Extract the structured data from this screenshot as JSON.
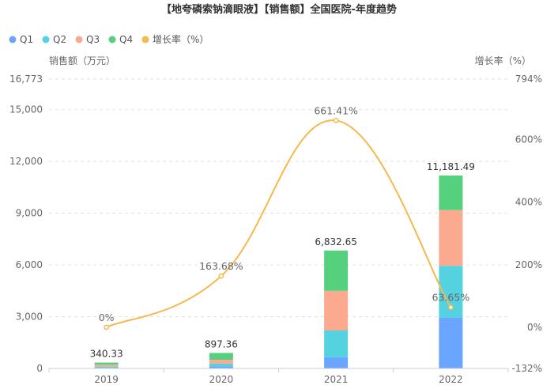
{
  "chart_data": {
    "type": "bar",
    "stacked": true,
    "title": "【地夸磷索钠滴眼液】【销售额】全国医院-年度趋势",
    "categories": [
      "2019",
      "2020",
      "2021",
      "2022"
    ],
    "series": [
      {
        "name": "Q1",
        "values": [
          40,
          120,
          650,
          2950
        ],
        "color": "#6aa5ff"
      },
      {
        "name": "Q2",
        "values": [
          70,
          160,
          1550,
          3000
        ],
        "color": "#55d2e0"
      },
      {
        "name": "Q3",
        "values": [
          110,
          220,
          2300,
          3230
        ],
        "color": "#fba98f"
      },
      {
        "name": "Q4",
        "values": [
          120.33,
          397.36,
          2332.65,
          2001.49
        ],
        "color": "#55d17e"
      }
    ],
    "totals": [
      340.33,
      897.36,
      6832.65,
      11181.49
    ],
    "total_labels": [
      "340.33",
      "897.36",
      "6,832.65",
      "11,181.49"
    ],
    "growth": {
      "name": "增长率（%）",
      "values": [
        0,
        163.68,
        661.41,
        63.65
      ],
      "labels": [
        "0%",
        "163.68%",
        "661.41%",
        "63.65%"
      ],
      "color": "#f5b94c"
    },
    "y_left": {
      "label": "销售额（万元）",
      "min": 0,
      "max": 16773,
      "ticks": [
        0,
        3000,
        6000,
        9000,
        12000,
        15000,
        16773
      ],
      "tick_labels": [
        "0",
        "3,000",
        "6,000",
        "9,000",
        "12,000",
        "15,000",
        "16,773"
      ]
    },
    "y_right": {
      "label": "增长率（%）",
      "min": -132,
      "max": 794,
      "ticks": [
        -132,
        0,
        200,
        400,
        600,
        794
      ],
      "tick_labels": [
        "-132%",
        "0%",
        "200%",
        "400%",
        "600%",
        "794%"
      ]
    },
    "grid": true,
    "legend_position": "top-left"
  }
}
